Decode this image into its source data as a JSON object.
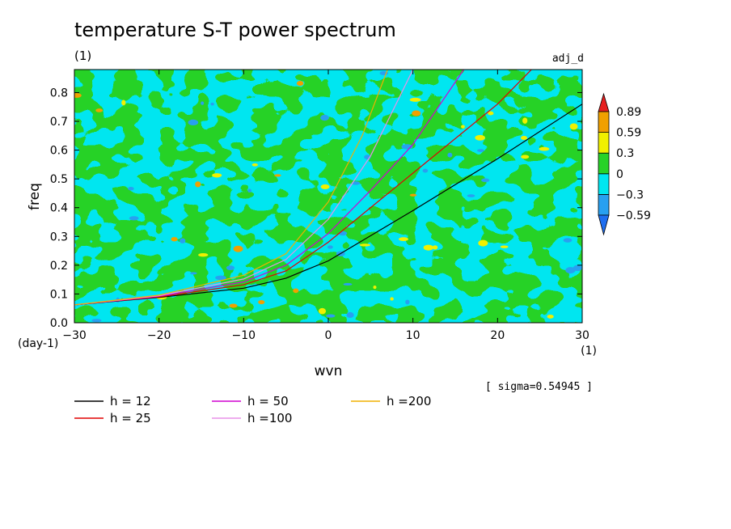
{
  "chart_data": {
    "type": "heatmap",
    "title": "temperature S-T power spectrum",
    "subtitle_left": "(1)",
    "subtitle_right": "adj_d",
    "xlabel": "wvn",
    "ylabel": "freq",
    "x_unit_label": "(1)",
    "y_unit_label": "(day-1)",
    "xlim": [
      -30,
      30
    ],
    "ylim": [
      0,
      0.88
    ],
    "xticks": [
      -30,
      -20,
      -10,
      0,
      10,
      20,
      30
    ],
    "xtick_labels": [
      "−30",
      "−20",
      "−10",
      "0",
      "10",
      "20",
      "30"
    ],
    "yticks": [
      0,
      0.1,
      0.2,
      0.3,
      0.4,
      0.5,
      0.6,
      0.7,
      0.8
    ],
    "ytick_labels": [
      "0.0",
      "0.1",
      "0.2",
      "0.3",
      "0.4",
      "0.5",
      "0.6",
      "0.7",
      "0.8"
    ],
    "sigma_label": "[ sigma=0.54945 ]",
    "colorbar": {
      "levels": [
        -0.59,
        -0.3,
        0,
        0.3,
        0.59,
        0.89
      ],
      "level_labels": [
        "−0.59",
        "−0.3",
        "0",
        "0.3",
        "0.59",
        "0.89"
      ],
      "colors": [
        "#1e6ef0",
        "#28a0f0",
        "#00e6f0",
        "#28d228",
        "#f0f000",
        "#f0a000",
        "#e61e1e"
      ]
    },
    "field_colors": {
      "cyan": "#00e6f0",
      "green": "#28d228",
      "blue": "#28a0f0",
      "yellow": "#f0f000",
      "orange": "#f0a000"
    },
    "dispersion_curves": [
      {
        "name": "h = 12",
        "h": 12,
        "color": "#000000",
        "x": [
          -30,
          -20,
          -10,
          -5,
          0,
          10,
          20,
          30
        ],
        "y": [
          0.062,
          0.088,
          0.12,
          0.155,
          0.215,
          0.39,
          0.57,
          0.76
        ]
      },
      {
        "name": "h = 25",
        "h": 25,
        "color": "#e00000",
        "x": [
          -30,
          -20,
          -10,
          -5,
          0,
          5,
          10,
          20,
          24
        ],
        "y": [
          0.062,
          0.09,
          0.132,
          0.18,
          0.28,
          0.4,
          0.52,
          0.76,
          0.88
        ]
      },
      {
        "name": "h = 50",
        "h": 50,
        "color": "#d000d0",
        "x": [
          -30,
          -20,
          -10,
          -5,
          0,
          5,
          10,
          16
        ],
        "y": [
          0.062,
          0.092,
          0.142,
          0.2,
          0.31,
          0.46,
          0.62,
          0.88
        ]
      },
      {
        "name": "h =100",
        "h": 100,
        "color": "#e890e8",
        "x": [
          -30,
          -20,
          -10,
          -5,
          0,
          5,
          10
        ],
        "y": [
          0.062,
          0.094,
          0.152,
          0.22,
          0.36,
          0.58,
          0.88
        ]
      },
      {
        "name": "h =200",
        "h": 200,
        "color": "#f0b000",
        "x": [
          -30,
          -20,
          -10,
          -5,
          0,
          4,
          7
        ],
        "y": [
          0.062,
          0.096,
          0.165,
          0.24,
          0.42,
          0.65,
          0.88
        ]
      }
    ],
    "legend": [
      {
        "label": "h = 12",
        "color": "#000000"
      },
      {
        "label": "h = 25",
        "color": "#e00000"
      },
      {
        "label": "h = 50",
        "color": "#d000d0"
      },
      {
        "label": "h =100",
        "color": "#e890e8"
      },
      {
        "label": "h =200",
        "color": "#f0b000"
      }
    ]
  }
}
